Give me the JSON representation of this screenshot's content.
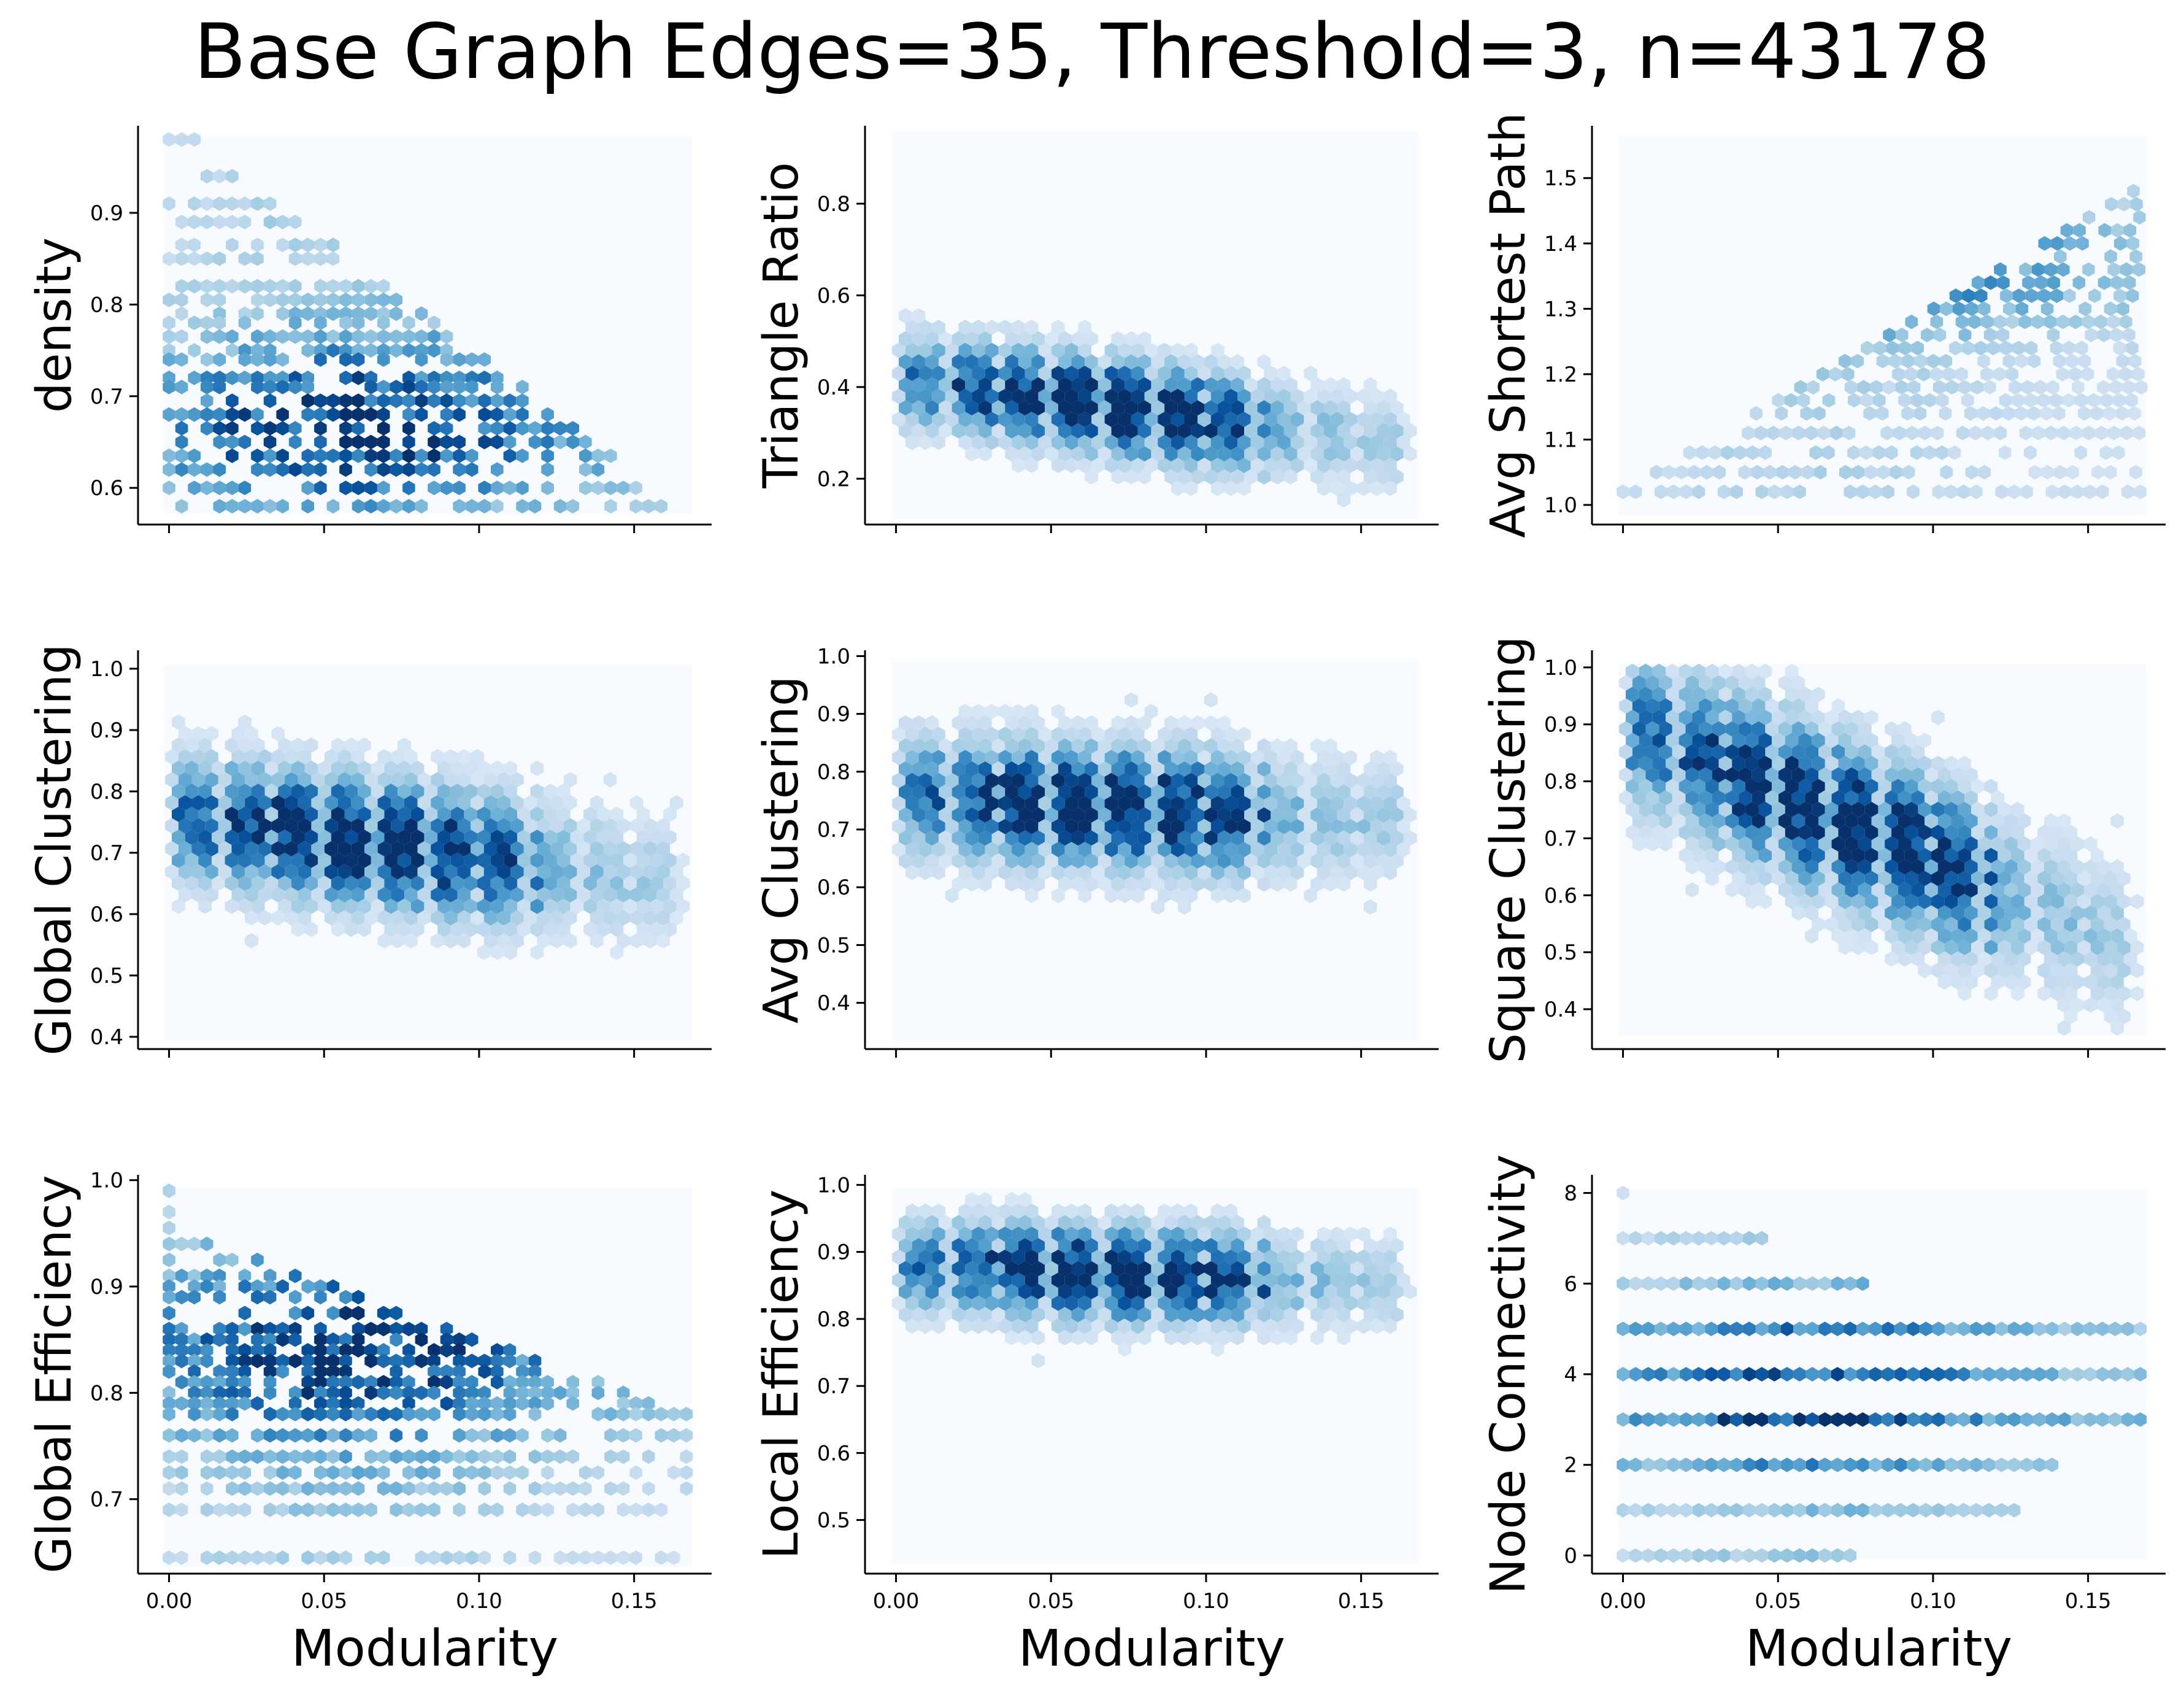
{
  "title": "Base Graph Edges=35, Threshold=3, n=43178",
  "colors": {
    "background_bin": "#f7fbff",
    "colormap": "Blues",
    "low": "#deebf7",
    "mid": "#4292c6",
    "high": "#08306b"
  },
  "chart_data": [
    {
      "type": "heatmap",
      "subtype": "hexbin",
      "xlabel": "",
      "ylabel": "density",
      "xlim": [
        -0.01,
        0.175
      ],
      "ylim": [
        0.56,
        0.995
      ],
      "xticks": [
        "0.00",
        "0.05",
        "0.10",
        "0.15"
      ],
      "xtick_values": [
        0,
        0.05,
        0.1,
        0.15
      ],
      "show_xtick_labels": false,
      "yticks": [
        "0.6",
        "0.7",
        "0.8",
        "0.9"
      ],
      "ytick_values": [
        0.6,
        0.7,
        0.8,
        0.9
      ],
      "bin_extent": {
        "x": [
          0,
          0.167
        ],
        "y": [
          0.575,
          0.98
        ]
      },
      "pattern": "discrete-y",
      "levels": [
        0.98,
        0.94,
        0.91,
        0.89,
        0.865,
        0.85,
        0.82,
        0.805,
        0.79,
        0.78,
        0.765,
        0.75,
        0.74,
        0.72,
        0.71,
        0.695,
        0.68,
        0.665,
        0.65,
        0.635,
        0.62,
        0.6,
        0.58
      ],
      "trend": {
        "type": "decreasing",
        "upper_start": 0.98,
        "upper_end": 0.67,
        "lower": 0.575,
        "peak_x": 0.06,
        "peak_y": 0.665
      }
    },
    {
      "type": "heatmap",
      "subtype": "hexbin",
      "xlabel": "",
      "ylabel": "Triangle Ratio",
      "xlim": [
        -0.01,
        0.175
      ],
      "ylim": [
        0.1,
        0.97
      ],
      "xticks": [
        "0.00",
        "0.05",
        "0.10",
        "0.15"
      ],
      "xtick_values": [
        0,
        0.05,
        0.1,
        0.15
      ],
      "show_xtick_labels": false,
      "yticks": [
        "0.2",
        "0.4",
        "0.6",
        "0.8"
      ],
      "ytick_values": [
        0.2,
        0.4,
        0.6,
        0.8
      ],
      "bin_extent": {
        "x": [
          0,
          0.167
        ],
        "y": [
          0.12,
          0.95
        ]
      },
      "pattern": "cloud",
      "trend": {
        "type": "decreasing",
        "center_start": 0.42,
        "center_end": 0.27,
        "spread": 0.09,
        "peak_x": 0.07,
        "peak_y": 0.3
      }
    },
    {
      "type": "heatmap",
      "subtype": "hexbin",
      "xlabel": "",
      "ylabel": "Avg Shortest Path",
      "xlim": [
        -0.01,
        0.175
      ],
      "ylim": [
        0.97,
        1.58
      ],
      "xticks": [
        "0.00",
        "0.05",
        "0.10",
        "0.15"
      ],
      "xtick_values": [
        0,
        0.05,
        0.1,
        0.15
      ],
      "show_xtick_labels": false,
      "yticks": [
        "1.0",
        "1.1",
        "1.2",
        "1.3",
        "1.4",
        "1.5"
      ],
      "ytick_values": [
        1.0,
        1.1,
        1.2,
        1.3,
        1.4,
        1.5
      ],
      "bin_extent": {
        "x": [
          0,
          0.167
        ],
        "y": [
          0.99,
          1.56
        ]
      },
      "pattern": "discrete-y",
      "levels": [
        1.02,
        1.05,
        1.08,
        1.11,
        1.14,
        1.16,
        1.18,
        1.2,
        1.22,
        1.24,
        1.26,
        1.28,
        1.3,
        1.32,
        1.34,
        1.36,
        1.38,
        1.4,
        1.42,
        1.44,
        1.46,
        1.48,
        1.5,
        1.53
      ],
      "trend": {
        "type": "increasing",
        "upper_start": 1.22,
        "upper_end": 1.5,
        "lower_start": 1.02,
        "lower_end": 1.3,
        "peak_x": 0.06,
        "peak_y": 1.37
      }
    },
    {
      "type": "heatmap",
      "subtype": "hexbin",
      "xlabel": "",
      "ylabel": "Global Clustering",
      "xlim": [
        -0.01,
        0.175
      ],
      "ylim": [
        0.38,
        1.03
      ],
      "xticks": [
        "0.00",
        "0.05",
        "0.10",
        "0.15"
      ],
      "xtick_values": [
        0,
        0.05,
        0.1,
        0.15
      ],
      "show_xtick_labels": false,
      "yticks": [
        "0.4",
        "0.5",
        "0.6",
        "0.7",
        "0.8",
        "0.9",
        "1.0"
      ],
      "ytick_values": [
        0.4,
        0.5,
        0.6,
        0.7,
        0.8,
        0.9,
        1.0
      ],
      "bin_extent": {
        "x": [
          0,
          0.167
        ],
        "y": [
          0.4,
          1.0
        ]
      },
      "pattern": "cloud",
      "trend": {
        "type": "flat",
        "center_start": 0.76,
        "center_end": 0.65,
        "spread": 0.09,
        "peak_x": 0.065,
        "peak_y": 0.68
      }
    },
    {
      "type": "heatmap",
      "subtype": "hexbin",
      "xlabel": "",
      "ylabel": "Avg Clustering",
      "xlim": [
        -0.01,
        0.175
      ],
      "ylim": [
        0.32,
        1.01
      ],
      "xticks": [
        "0.00",
        "0.05",
        "0.10",
        "0.15"
      ],
      "xtick_values": [
        0,
        0.05,
        0.1,
        0.15
      ],
      "show_xtick_labels": false,
      "yticks": [
        "0.4",
        "0.5",
        "0.6",
        "0.7",
        "0.8",
        "0.9",
        "1.0"
      ],
      "ytick_values": [
        0.4,
        0.5,
        0.6,
        0.7,
        0.8,
        0.9,
        1.0
      ],
      "bin_extent": {
        "x": [
          0,
          0.167
        ],
        "y": [
          0.34,
          0.99
        ]
      },
      "pattern": "cloud",
      "trend": {
        "type": "flat",
        "center_start": 0.76,
        "center_end": 0.71,
        "spread": 0.09,
        "peak_x": 0.07,
        "peak_y": 0.72
      }
    },
    {
      "type": "heatmap",
      "subtype": "hexbin",
      "xlabel": "",
      "ylabel": "Square Clustering",
      "xlim": [
        -0.01,
        0.175
      ],
      "ylim": [
        0.33,
        1.03
      ],
      "xticks": [
        "0.00",
        "0.05",
        "0.10",
        "0.15"
      ],
      "xtick_values": [
        0,
        0.05,
        0.1,
        0.15
      ],
      "show_xtick_labels": false,
      "yticks": [
        "0.4",
        "0.5",
        "0.6",
        "0.7",
        "0.8",
        "0.9",
        "1.0"
      ],
      "ytick_values": [
        0.4,
        0.5,
        0.6,
        0.7,
        0.8,
        0.9,
        1.0
      ],
      "bin_extent": {
        "x": [
          0,
          0.167
        ],
        "y": [
          0.36,
          1.0
        ]
      },
      "pattern": "cloud",
      "trend": {
        "type": "decreasing",
        "center_start": 0.9,
        "center_end": 0.5,
        "spread": 0.12,
        "peak_x": 0.07,
        "peak_y": 0.63
      }
    },
    {
      "type": "heatmap",
      "subtype": "hexbin",
      "xlabel": "Modularity",
      "ylabel": "Global Efficiency",
      "xlim": [
        -0.01,
        0.175
      ],
      "ylim": [
        0.63,
        1.005
      ],
      "xticks": [
        "0.00",
        "0.05",
        "0.10",
        "0.15"
      ],
      "xtick_values": [
        0,
        0.05,
        0.1,
        0.15
      ],
      "show_xtick_labels": true,
      "yticks": [
        "0.7",
        "0.8",
        "0.9",
        "1.0"
      ],
      "ytick_values": [
        0.7,
        0.8,
        0.9,
        1.0
      ],
      "bin_extent": {
        "x": [
          0,
          0.167
        ],
        "y": [
          0.64,
          0.99
        ]
      },
      "pattern": "discrete-y",
      "levels": [
        0.99,
        0.97,
        0.955,
        0.94,
        0.925,
        0.91,
        0.9,
        0.89,
        0.875,
        0.86,
        0.85,
        0.84,
        0.83,
        0.82,
        0.81,
        0.8,
        0.79,
        0.78,
        0.76,
        0.74,
        0.725,
        0.71,
        0.69,
        0.645
      ],
      "trend": {
        "type": "decreasing",
        "upper_start": 0.95,
        "upper_end": 0.83,
        "lower": 0.78,
        "peak_x": 0.06,
        "peak_y": 0.84
      }
    },
    {
      "type": "heatmap",
      "subtype": "hexbin",
      "xlabel": "Modularity",
      "ylabel": "Local Efficiency",
      "xlim": [
        -0.01,
        0.175
      ],
      "ylim": [
        0.42,
        1.015
      ],
      "xticks": [
        "0.00",
        "0.05",
        "0.10",
        "0.15"
      ],
      "xtick_values": [
        0,
        0.05,
        0.1,
        0.15
      ],
      "show_xtick_labels": true,
      "yticks": [
        "0.5",
        "0.6",
        "0.7",
        "0.8",
        "0.9",
        "1.0"
      ],
      "ytick_values": [
        0.5,
        0.6,
        0.7,
        0.8,
        0.9,
        1.0
      ],
      "bin_extent": {
        "x": [
          0,
          0.167
        ],
        "y": [
          0.44,
          0.99
        ]
      },
      "pattern": "cloud",
      "trend": {
        "type": "flat",
        "center_start": 0.88,
        "center_end": 0.85,
        "spread": 0.06,
        "peak_x": 0.07,
        "peak_y": 0.86
      }
    },
    {
      "type": "heatmap",
      "subtype": "hexbin",
      "xlabel": "Modularity",
      "ylabel": "Node Connectivity",
      "xlim": [
        -0.01,
        0.175
      ],
      "ylim": [
        -0.4,
        8.4
      ],
      "xticks": [
        "0.00",
        "0.05",
        "0.10",
        "0.15"
      ],
      "xtick_values": [
        0,
        0.05,
        0.1,
        0.15
      ],
      "show_xtick_labels": true,
      "yticks": [
        "0",
        "2",
        "4",
        "6",
        "8"
      ],
      "ytick_values": [
        0,
        2,
        4,
        6,
        8
      ],
      "bin_extent": {
        "x": [
          0,
          0.167
        ],
        "y": [
          0,
          8
        ]
      },
      "pattern": "discrete-y",
      "levels": [
        0,
        1,
        2,
        3,
        4,
        5,
        6,
        7,
        8
      ],
      "level_extent": {
        "0": 0.075,
        "1": 0.13,
        "2": 0.14,
        "3": 0.167,
        "4": 0.167,
        "5": 0.167,
        "6": 0.08,
        "7": 0.045,
        "8": 0.002
      },
      "level_weight": {
        "0": 0.3,
        "1": 0.35,
        "2": 0.6,
        "3": 0.95,
        "4": 0.85,
        "5": 0.75,
        "6": 0.4,
        "7": 0.25,
        "8": 0.2
      },
      "trend": {
        "type": "levels",
        "peak_x": 0.06
      }
    }
  ]
}
